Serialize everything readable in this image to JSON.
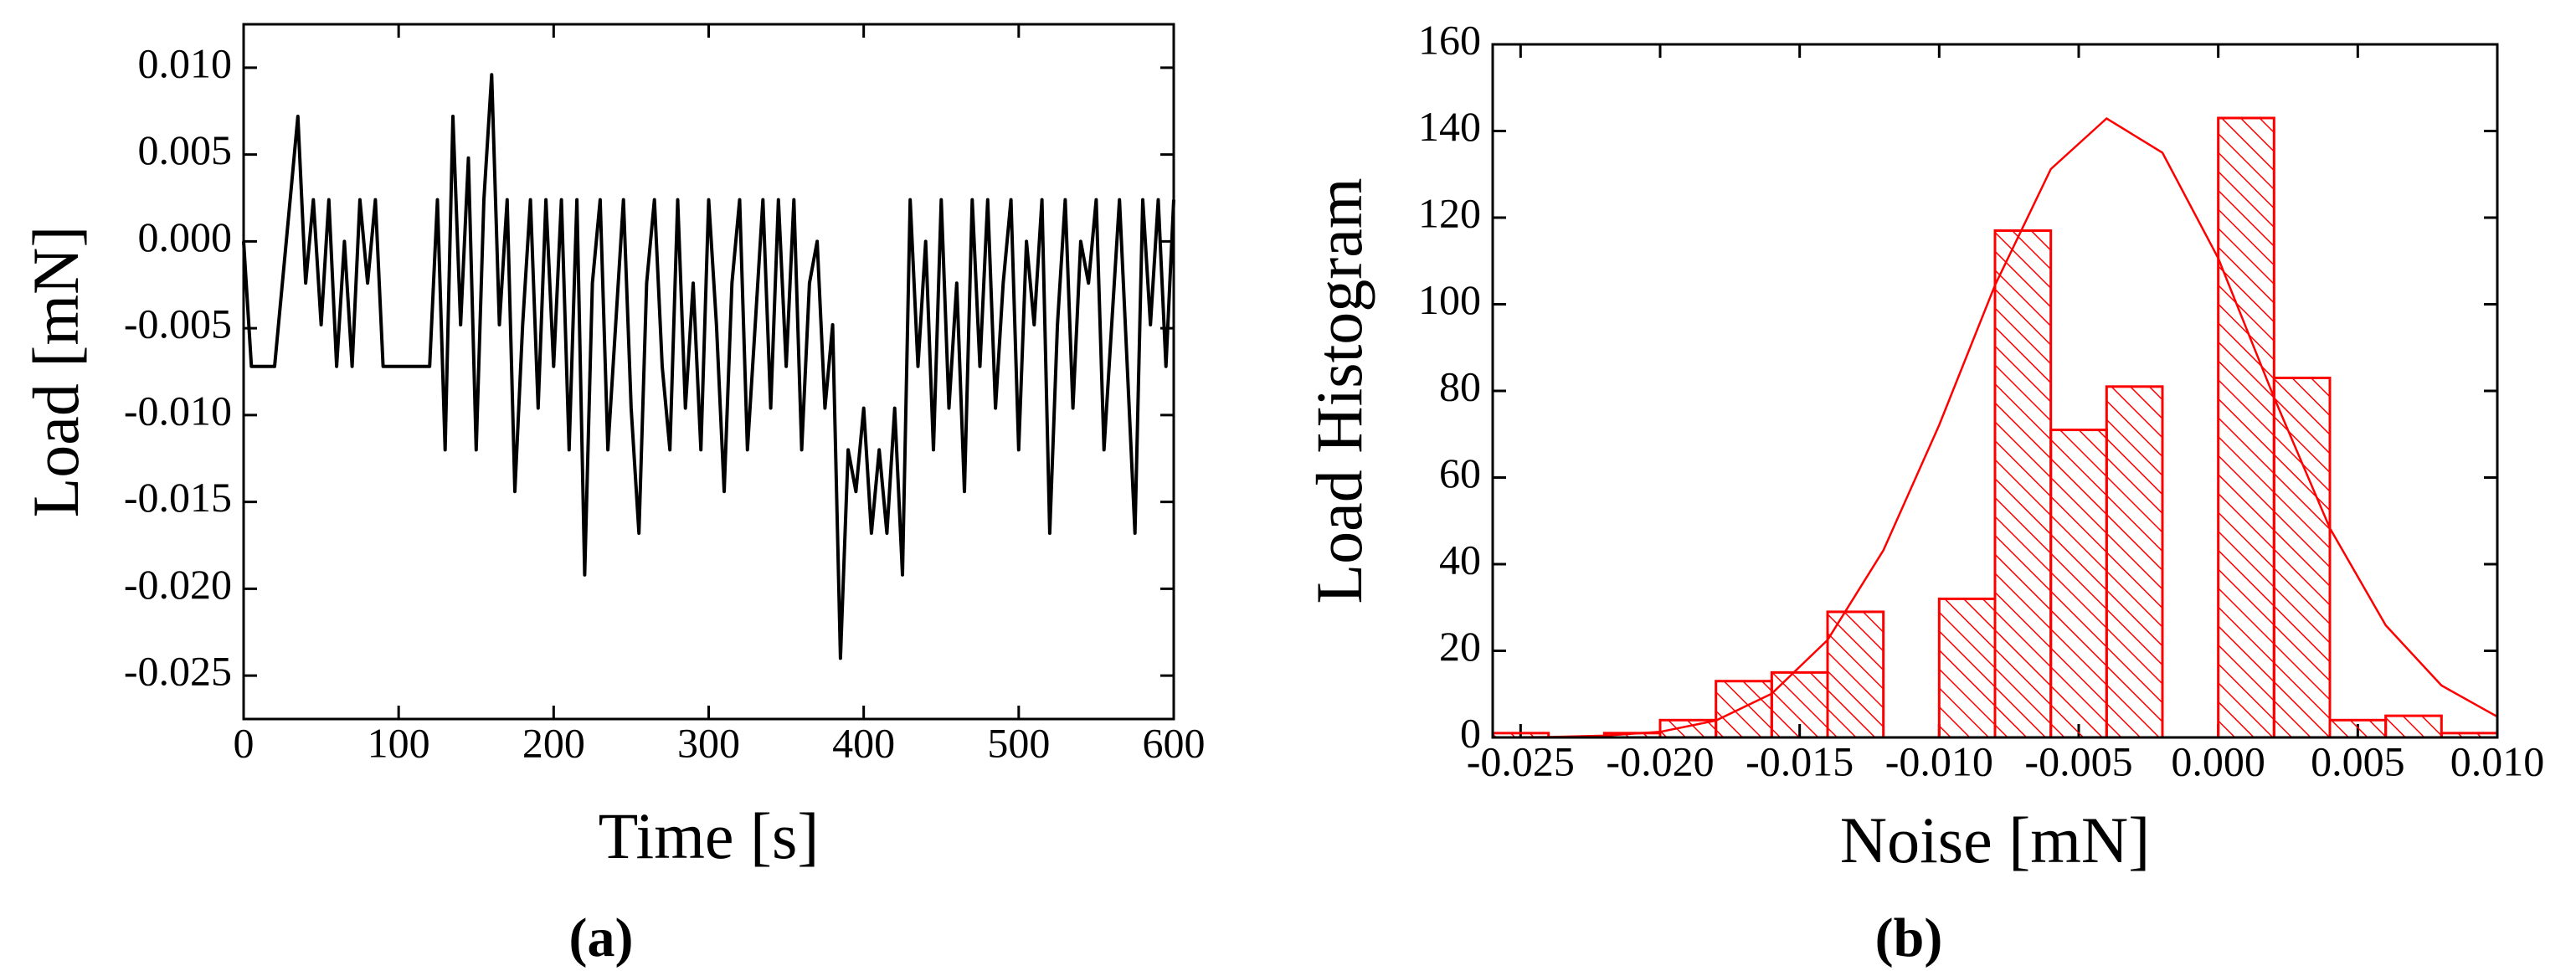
{
  "chart_data": [
    {
      "type": "line",
      "xlabel": "Time [s]",
      "ylabel": "Load [mN]",
      "caption": "(a)",
      "color": "#000000",
      "x": [
        0,
        5,
        10,
        15,
        20,
        25,
        30,
        35,
        40,
        45,
        50,
        55,
        60,
        65,
        70,
        75,
        80,
        85,
        90,
        95,
        100,
        105,
        110,
        115,
        120,
        125,
        130,
        135,
        140,
        145,
        150,
        155,
        160,
        165,
        170,
        175,
        180,
        185,
        190,
        195,
        200,
        205,
        210,
        215,
        220,
        225,
        230,
        235,
        240,
        245,
        250,
        255,
        260,
        265,
        270,
        275,
        280,
        285,
        290,
        295,
        300,
        305,
        310,
        315,
        320,
        325,
        330,
        335,
        340,
        345,
        350,
        355,
        360,
        365,
        370,
        375,
        380,
        385,
        390,
        395,
        400,
        405,
        410,
        415,
        420,
        425,
        430,
        435,
        440,
        445,
        450,
        455,
        460,
        465,
        470,
        475,
        480,
        485,
        490,
        495,
        500,
        505,
        510,
        515,
        520,
        525,
        530,
        535,
        540,
        545,
        550,
        555,
        560,
        565,
        570,
        575,
        580,
        585,
        590,
        595,
        600
      ],
      "values": [
        0,
        -0.0072,
        -0.0072,
        -0.0072,
        -0.0072,
        -0.0024,
        0.0024,
        0.0072,
        -0.0024,
        0.0024,
        -0.0048,
        0.0024,
        -0.0072,
        0,
        -0.0072,
        0.0024,
        -0.0024,
        0.0024,
        -0.0072,
        -0.0072,
        -0.0072,
        -0.0072,
        -0.0072,
        -0.0072,
        -0.0072,
        0.0024,
        -0.012,
        0.0072,
        -0.0048,
        0.0048,
        -0.012,
        0.0024,
        0.0096,
        -0.0048,
        0.0024,
        -0.0144,
        -0.0048,
        0.0024,
        -0.0096,
        0.0024,
        -0.0072,
        0.0024,
        -0.012,
        0.0024,
        -0.0192,
        -0.0024,
        0.0024,
        -0.012,
        -0.0048,
        0.0024,
        -0.0096,
        -0.0168,
        -0.0024,
        0.0024,
        -0.0072,
        -0.012,
        0.0024,
        -0.0096,
        -0.0024,
        -0.012,
        0.0024,
        -0.0048,
        -0.0144,
        -0.0024,
        0.0024,
        -0.012,
        -0.0048,
        0.0024,
        -0.0096,
        0.0024,
        -0.0072,
        0.0024,
        -0.012,
        -0.0024,
        0,
        -0.0096,
        -0.0048,
        -0.024,
        -0.012,
        -0.0144,
        -0.0096,
        -0.0168,
        -0.012,
        -0.0168,
        -0.0096,
        -0.0192,
        0.0024,
        -0.0072,
        0,
        -0.012,
        0.0024,
        -0.0096,
        -0.0024,
        -0.0144,
        0.0024,
        -0.0072,
        0.0024,
        -0.0096,
        -0.0024,
        0.0024,
        -0.012,
        0,
        -0.0048,
        0.0024,
        -0.0168,
        -0.0048,
        0.0024,
        -0.0096,
        0,
        -0.0024,
        0.0024,
        -0.012,
        -0.0048,
        0.0024,
        -0.0072,
        -0.0168,
        0.0024,
        -0.0048,
        0.0024,
        -0.0072,
        0.0024
      ],
      "xlim": [
        0,
        600
      ],
      "xticks": [
        0,
        100,
        200,
        300,
        400,
        500,
        600
      ],
      "ylim": [
        -0.0275,
        0.0125
      ],
      "yticks": [
        {
          "value": -0.025,
          "label": "-0.025"
        },
        {
          "value": -0.02,
          "label": "-0.020"
        },
        {
          "value": -0.015,
          "label": "-0.015"
        },
        {
          "value": -0.01,
          "label": "-0.010"
        },
        {
          "value": -0.005,
          "label": "-0.005"
        },
        {
          "value": 0,
          "label": "0.000"
        },
        {
          "value": 0.005,
          "label": "0.005"
        },
        {
          "value": 0.01,
          "label": "0.010"
        }
      ]
    },
    {
      "type": "histogram",
      "xlabel": "Noise [mN]",
      "ylabel": "Load Histogram",
      "caption": "(b)",
      "color": "#ff0000",
      "bins": [
        -0.026,
        -0.024,
        -0.022,
        -0.02,
        -0.018,
        -0.016,
        -0.014,
        -0.012,
        -0.01,
        -0.008,
        -0.006,
        -0.004,
        -0.002,
        0,
        0.002,
        0.004,
        0.006,
        0.008,
        0.01
      ],
      "values": [
        1,
        0,
        1,
        4,
        13,
        15,
        29,
        0,
        32,
        117,
        71,
        81,
        0,
        143,
        83,
        4,
        5,
        1
      ],
      "fit": {
        "x": [
          -0.026,
          -0.024,
          -0.022,
          -0.02,
          -0.018,
          -0.016,
          -0.014,
          -0.012,
          -0.01,
          -0.008,
          -0.006,
          -0.004,
          -0.002,
          0,
          0.002,
          0.004,
          0.006,
          0.008,
          0.01
        ],
        "values": [
          0.02,
          0.1,
          0.4,
          1.3,
          3.9,
          10.1,
          22.5,
          43.2,
          72.1,
          104.4,
          131.2,
          142.9,
          135,
          110.6,
          78.5,
          48.3,
          25.9,
          12,
          4.8
        ]
      },
      "xlim": [
        -0.026,
        0.01
      ],
      "xticks": [
        {
          "value": -0.025,
          "label": "-0.025"
        },
        {
          "value": -0.02,
          "label": "-0.020"
        },
        {
          "value": -0.015,
          "label": "-0.015"
        },
        {
          "value": -0.01,
          "label": "-0.010"
        },
        {
          "value": -0.005,
          "label": "-0.005"
        },
        {
          "value": 0,
          "label": "0.000"
        },
        {
          "value": 0.005,
          "label": "0.005"
        },
        {
          "value": 0.01,
          "label": "0.010"
        }
      ],
      "ylim": [
        0,
        160
      ],
      "yticks": [
        0,
        20,
        40,
        60,
        80,
        100,
        120,
        140,
        160
      ]
    }
  ]
}
